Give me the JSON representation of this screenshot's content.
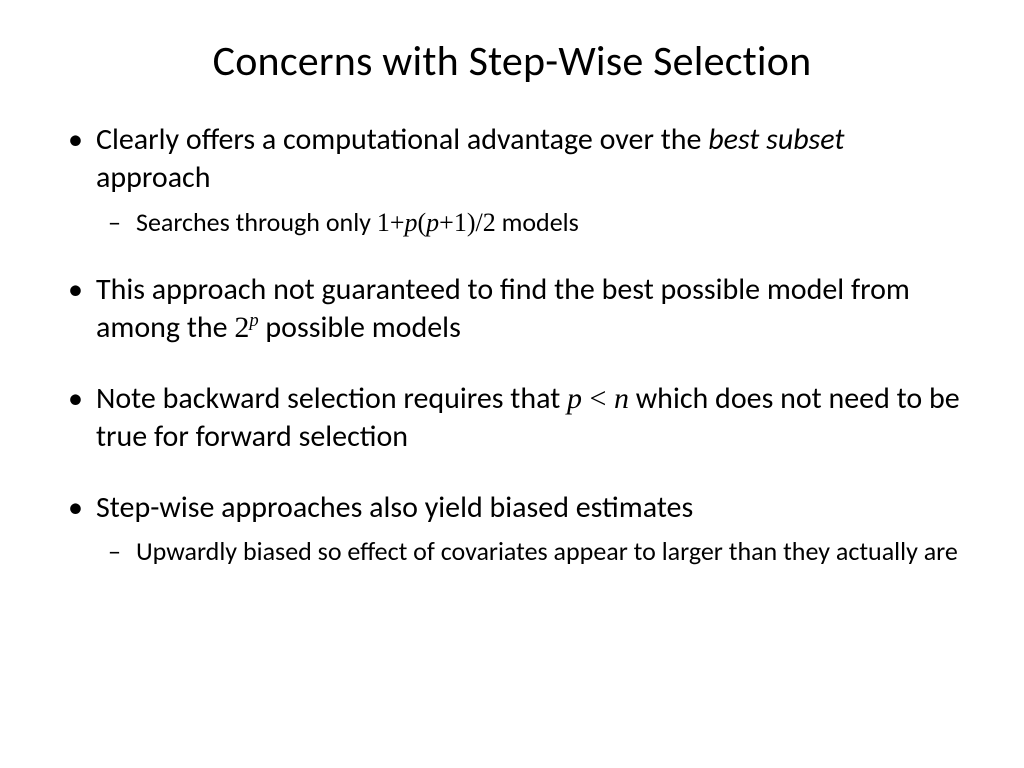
{
  "title": "Concerns with Step-Wise Selection",
  "title_fontsize": 42,
  "body_fontsize_level1": 30,
  "body_fontsize_level2": 26,
  "colors": {
    "text": "#000000",
    "background": "#ffffff"
  },
  "bullets": {
    "b1": {
      "pre": "Clearly offers a computational advantage over the ",
      "ital": "best subset",
      "post": " approach",
      "sub": {
        "pre": "Searches through only ",
        "formula": "1+p(p+1)/2",
        "formula_html": "1+<i>p</i>(<i>p</i>+1)/2",
        "post": " models"
      }
    },
    "b2": {
      "pre": "This approach not guaranteed to find the best possible model from among the ",
      "base": "2",
      "sup": "p",
      "post": " possible models"
    },
    "b3": {
      "pre": "Note backward selection requires that ",
      "formula": "p < n",
      "formula_html": "<i>p</i> < <i>n</i>",
      "post": " which does not need to be true for forward selection"
    },
    "b4": {
      "text": "Step-wise approaches also yield biased estimates",
      "sub": {
        "text": "Upwardly biased so effect of covariates appear to larger than they actually are"
      }
    }
  }
}
